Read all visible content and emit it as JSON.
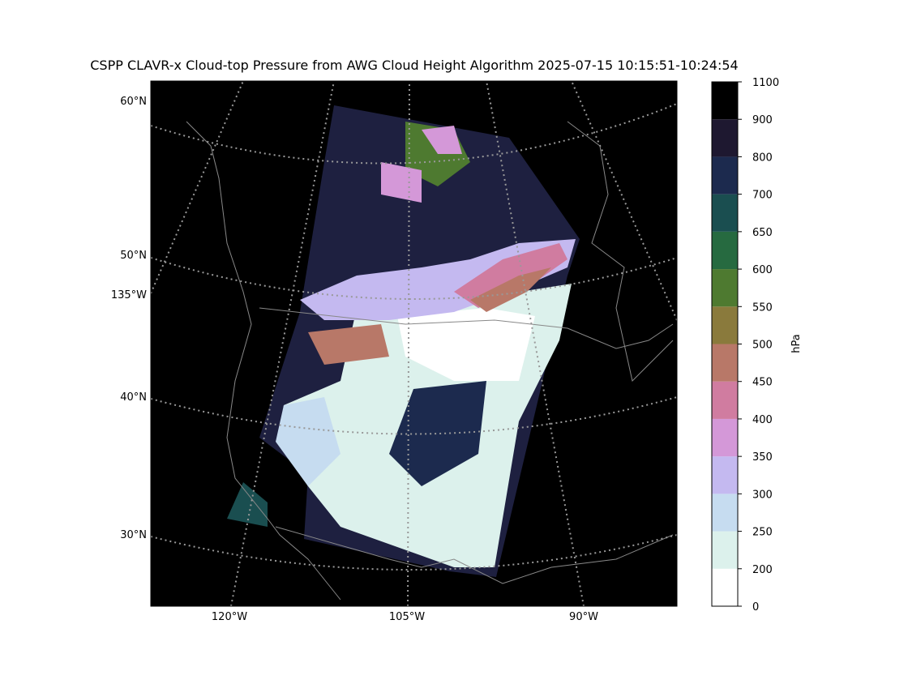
{
  "title": "CSPP CLAVR-x Cloud-top Pressure from AWG Cloud Height Algorithm 2025-07-15 10:15:51-10:24:54",
  "map": {
    "lat_labels": [
      "60°N",
      "50°N",
      "40°N",
      "30°N"
    ],
    "lon_labels": [
      "135°W",
      "120°W",
      "105°W",
      "90°W"
    ]
  },
  "colorbar": {
    "label": "hPa",
    "ticks": [
      0,
      200,
      250,
      300,
      350,
      400,
      450,
      500,
      550,
      600,
      650,
      700,
      800,
      900,
      1100
    ],
    "colors": [
      "#ffffff",
      "#dcf1ec",
      "#c6dcf0",
      "#c4b9f0",
      "#d498d8",
      "#d07ca0",
      "#b87868",
      "#8a7a3c",
      "#4e7a30",
      "#266a40",
      "#1a4e50",
      "#1c2a4e",
      "#1e1830",
      "#000000"
    ]
  }
}
